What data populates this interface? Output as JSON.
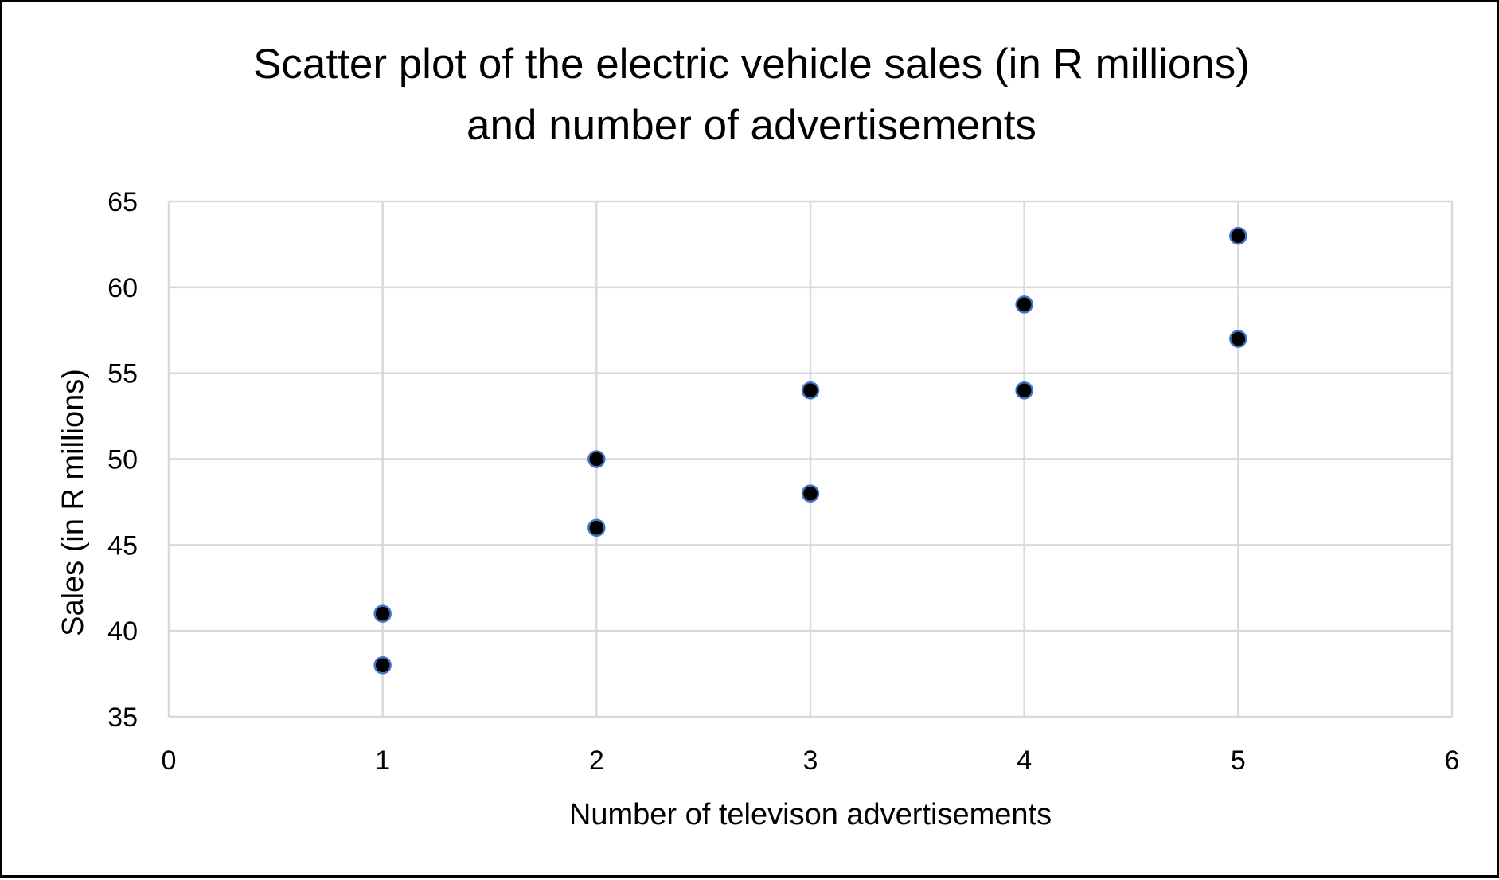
{
  "chart_data": {
    "type": "scatter",
    "title_lines": [
      "Scatter plot of the electric vehicle sales (in R millions)",
      "and number of advertisements"
    ],
    "xlabel": "Number of televison advertisements",
    "ylabel": "Sales (in R millions)",
    "xlim": [
      0,
      6
    ],
    "ylim": [
      35,
      65
    ],
    "x_ticks": [
      0,
      1,
      2,
      3,
      4,
      5,
      6
    ],
    "y_ticks": [
      35,
      40,
      45,
      50,
      55,
      60,
      65
    ],
    "grid": true,
    "legend": "none",
    "marker_fill": "#000000",
    "marker_edge": "#4472C4",
    "gridline_color": "#D9D9D9",
    "series": [
      {
        "points": [
          {
            "x": 1,
            "y": 41
          },
          {
            "x": 1,
            "y": 38
          },
          {
            "x": 2,
            "y": 50
          },
          {
            "x": 2,
            "y": 46
          },
          {
            "x": 3,
            "y": 54
          },
          {
            "x": 3,
            "y": 48
          },
          {
            "x": 4,
            "y": 59
          },
          {
            "x": 4,
            "y": 54
          },
          {
            "x": 5,
            "y": 63
          },
          {
            "x": 5,
            "y": 57
          }
        ]
      }
    ]
  }
}
